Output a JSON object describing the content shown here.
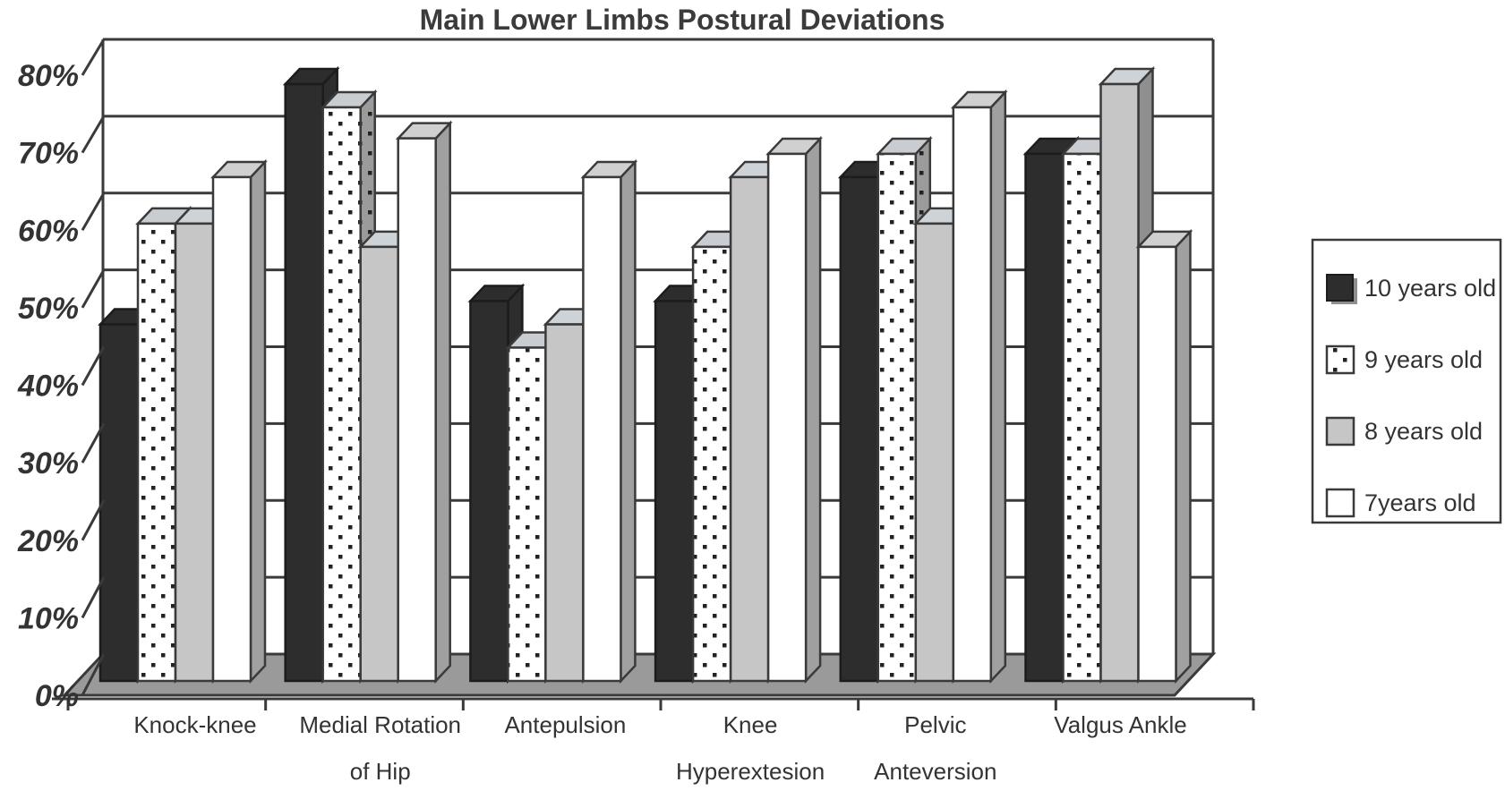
{
  "chart_data": {
    "type": "bar",
    "projection": "3d-oblique",
    "title": "Main Lower Limbs Postural Deviations",
    "categories": [
      {
        "lines": [
          "Knock-knee"
        ]
      },
      {
        "lines": [
          "Medial Rotation",
          "of Hip"
        ]
      },
      {
        "lines": [
          "Antepulsion"
        ]
      },
      {
        "lines": [
          "Knee",
          "Hyperextesion"
        ]
      },
      {
        "lines": [
          "Pelvic",
          "Anteversion"
        ]
      },
      {
        "lines": [
          "Valgus Ankle"
        ]
      }
    ],
    "series": [
      {
        "name": "10 years old",
        "style": "black",
        "values": [
          46,
          77,
          49,
          49,
          65,
          68
        ]
      },
      {
        "name": "9 years old",
        "style": "dotted",
        "values": [
          59,
          74,
          43,
          56,
          68,
          68
        ]
      },
      {
        "name": "8 years old",
        "style": "gray",
        "values": [
          59,
          56,
          46,
          65,
          59,
          77
        ]
      },
      {
        "name": "7years old",
        "style": "white",
        "values": [
          65,
          70,
          65,
          68,
          74,
          56
        ]
      }
    ],
    "y_axis": {
      "min": 0,
      "max": 80,
      "step": 10,
      "tick_labels": [
        "0%",
        "10%",
        "20%",
        "30%",
        "40%",
        "50%",
        "60%",
        "70%",
        "80%"
      ]
    },
    "legend_position": "right",
    "grid": true,
    "colors": {
      "bar_black": "#2d2d2d",
      "bar_black_edge": "#1c1c1c",
      "bar_gray_front": "#c6c6c6",
      "bar_gray_side": "#8f8f8f",
      "bar_gray_top": "#ced3d7",
      "bar_white_front": "#ffffff",
      "bar_white_side": "#a0a0a0",
      "bar_white_top": "#d0d0d0",
      "dotted_front_bg": "#ffffff",
      "dotted_side_bg": "#9b9b9b",
      "dotted_top": "#c9cdd1",
      "dot_color": "#222222",
      "outline": "#3a3a3a",
      "floor": "#9a9a9a",
      "text_color": "#333333",
      "title_color": "#3b3b3b",
      "wall_bg": "#ffffff"
    }
  }
}
